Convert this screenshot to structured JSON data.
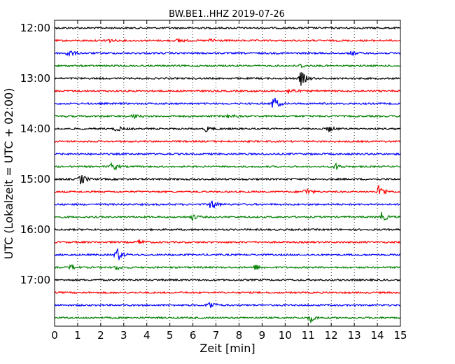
{
  "chart_data": {
    "type": "line",
    "subtype": "seismogram-helicorder",
    "title": "BW.BE1..HHZ 2019-07-26",
    "xlabel": "Zeit  [min]",
    "ylabel": "UTC (Lokalzeit = UTC + 02:00)",
    "xlim": [
      0,
      15
    ],
    "x_ticks": [
      "0",
      "1",
      "2",
      "3",
      "4",
      "5",
      "6",
      "7",
      "8",
      "9",
      "10",
      "11",
      "12",
      "13",
      "14",
      "15"
    ],
    "row_interval_minutes": 15,
    "trace_colors": [
      "#000000",
      "#ff0000",
      "#0000ff",
      "#008000"
    ],
    "y_tick_labels": [
      {
        "row": 0,
        "label": "12:00"
      },
      {
        "row": 4,
        "label": "13:00"
      },
      {
        "row": 8,
        "label": "14:00"
      },
      {
        "row": 12,
        "label": "15:00"
      },
      {
        "row": 16,
        "label": "16:00"
      },
      {
        "row": 20,
        "label": "17:00"
      }
    ],
    "rows": [
      {
        "start": "12:00",
        "events": []
      },
      {
        "start": "12:15",
        "events": [
          {
            "t": 2.25,
            "a": 0.6
          },
          {
            "t": 5.4,
            "a": 0.4
          },
          {
            "t": 6.8,
            "a": 0.5
          }
        ]
      },
      {
        "start": "12:30",
        "events": [
          {
            "t": 0.6,
            "a": 0.8
          },
          {
            "t": 12.9,
            "a": 0.4
          }
        ]
      },
      {
        "start": "12:45",
        "events": [
          {
            "t": 10.7,
            "a": 0.4
          }
        ]
      },
      {
        "start": "13:00",
        "events": [
          {
            "t": 10.7,
            "a": 1.6
          }
        ]
      },
      {
        "start": "13:15",
        "events": [
          {
            "t": 10.2,
            "a": 0.8
          }
        ]
      },
      {
        "start": "13:30",
        "events": [
          {
            "t": 9.5,
            "a": 1.6
          }
        ]
      },
      {
        "start": "13:45",
        "events": [
          {
            "t": 3.4,
            "a": 0.5
          },
          {
            "t": 7.6,
            "a": 0.5
          }
        ]
      },
      {
        "start": "14:00",
        "events": [
          {
            "t": 2.7,
            "a": 0.6
          },
          {
            "t": 6.6,
            "a": 0.6
          },
          {
            "t": 11.9,
            "a": 0.6
          }
        ]
      },
      {
        "start": "14:15",
        "events": []
      },
      {
        "start": "14:30",
        "events": []
      },
      {
        "start": "14:45",
        "events": [
          {
            "t": 2.5,
            "a": 0.9
          },
          {
            "t": 12.2,
            "a": 0.6
          }
        ]
      },
      {
        "start": "15:00",
        "events": [
          {
            "t": 1.15,
            "a": 1.2
          }
        ]
      },
      {
        "start": "15:15",
        "events": [
          {
            "t": 10.9,
            "a": 0.8
          },
          {
            "t": 14.1,
            "a": 1.6
          }
        ]
      },
      {
        "start": "15:30",
        "events": [
          {
            "t": 6.8,
            "a": 1.2
          }
        ]
      },
      {
        "start": "15:45",
        "events": [
          {
            "t": 6.0,
            "a": 0.6
          },
          {
            "t": 14.2,
            "a": 1.0
          }
        ]
      },
      {
        "start": "16:00",
        "events": []
      },
      {
        "start": "16:15",
        "events": [
          {
            "t": 3.7,
            "a": 0.5
          }
        ]
      },
      {
        "start": "16:30",
        "events": [
          {
            "t": 2.7,
            "a": 1.6
          }
        ]
      },
      {
        "start": "16:45",
        "events": [
          {
            "t": 0.7,
            "a": 0.5
          },
          {
            "t": 2.7,
            "a": 0.5
          },
          {
            "t": 8.7,
            "a": 0.6
          }
        ]
      },
      {
        "start": "17:00",
        "events": []
      },
      {
        "start": "17:15",
        "events": []
      },
      {
        "start": "17:30",
        "events": [
          {
            "t": 6.7,
            "a": 1.0
          }
        ]
      },
      {
        "start": "17:45",
        "events": [
          {
            "t": 11.1,
            "a": 0.8
          }
        ]
      }
    ],
    "grid": "vertical-dotted",
    "legend": "none"
  }
}
